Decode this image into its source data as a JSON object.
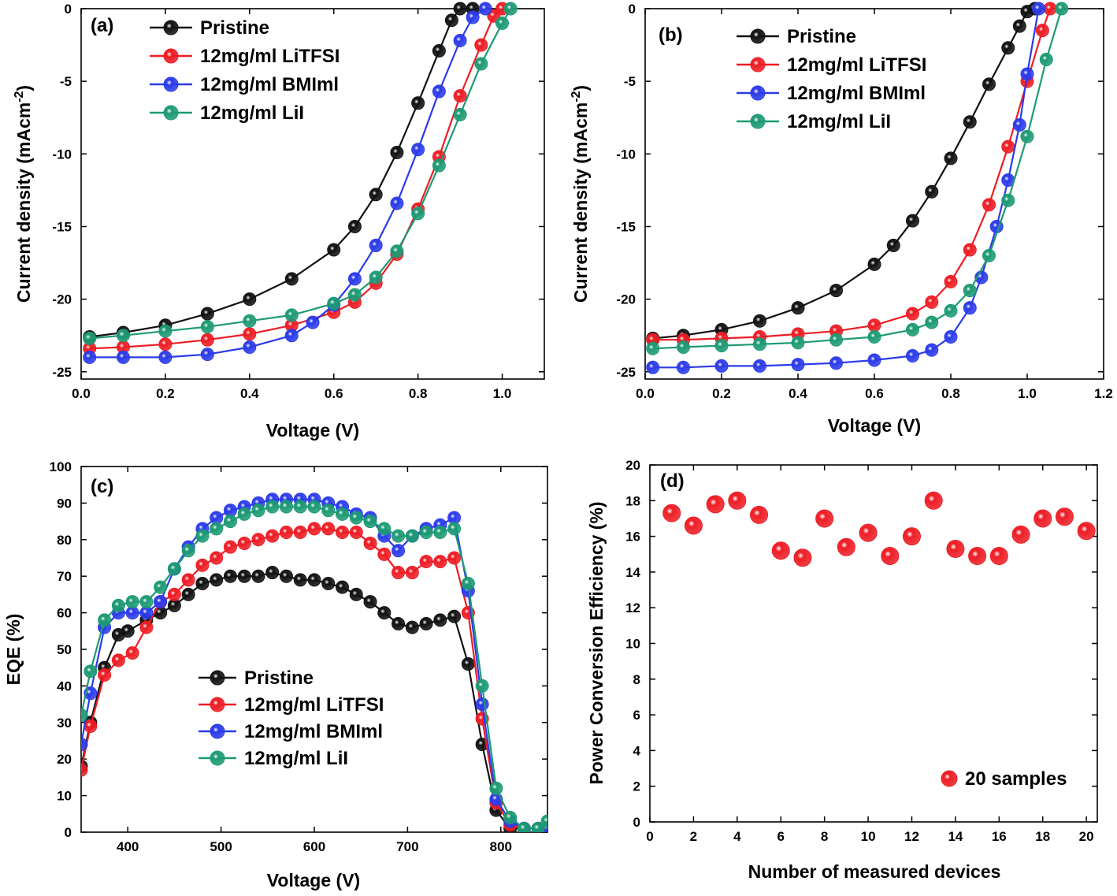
{
  "palette": {
    "Pristine": "#111111",
    "12mg/ml LiTFSI": "#ee1c24",
    "12mg/ml BMIml": "#2b3bea",
    "12mg/ml LiI": "#1d9a74"
  },
  "chart_data": [
    {
      "type": "line",
      "panel": "(a)",
      "xlabel": "Voltage (V)",
      "ylabel": "Current density (mAcm-2)",
      "xlim": [
        0,
        1.1
      ],
      "ylim": [
        -25.5,
        0
      ],
      "xticks": [
        "0.0",
        "0.2",
        "0.4",
        "0.6",
        "0.8",
        "1.0"
      ],
      "yticks": [
        "0",
        "-5",
        "-10",
        "-15",
        "-20",
        "-25"
      ],
      "legend_position": "top-left",
      "series": [
        {
          "name": "Pristine",
          "color": "Pristine",
          "x": [
            0.02,
            0.1,
            0.2,
            0.3,
            0.4,
            0.5,
            0.6,
            0.65,
            0.7,
            0.75,
            0.8,
            0.85,
            0.88,
            0.9,
            0.93
          ],
          "y": [
            -22.6,
            -22.3,
            -21.8,
            -21,
            -20,
            -18.6,
            -16.6,
            -15,
            -12.8,
            -9.9,
            -6.5,
            -2.9,
            -0.8,
            0,
            0
          ]
        },
        {
          "name": "12mg/ml LiTFSI",
          "color": "12mg/ml LiTFSI",
          "x": [
            0.02,
            0.1,
            0.2,
            0.3,
            0.4,
            0.5,
            0.6,
            0.65,
            0.7,
            0.75,
            0.8,
            0.85,
            0.9,
            0.95,
            0.98,
            1.0
          ],
          "y": [
            -23.4,
            -23.3,
            -23.1,
            -22.8,
            -22.4,
            -21.8,
            -20.9,
            -20.2,
            -18.9,
            -16.9,
            -13.8,
            -10.2,
            -6,
            -2.5,
            -0.5,
            0
          ]
        },
        {
          "name": "12mg/ml BMIml",
          "color": "12mg/ml BMIml",
          "x": [
            0.02,
            0.1,
            0.2,
            0.3,
            0.4,
            0.5,
            0.55,
            0.6,
            0.65,
            0.7,
            0.75,
            0.8,
            0.85,
            0.9,
            0.93,
            0.96
          ],
          "y": [
            -24,
            -24,
            -24,
            -23.8,
            -23.3,
            -22.5,
            -21.6,
            -20.4,
            -18.6,
            -16.3,
            -13.4,
            -9.7,
            -5.7,
            -2.2,
            -0.6,
            0
          ]
        },
        {
          "name": "12mg/ml LiI",
          "color": "12mg/ml LiI",
          "x": [
            0.02,
            0.1,
            0.2,
            0.3,
            0.4,
            0.5,
            0.6,
            0.65,
            0.7,
            0.75,
            0.8,
            0.85,
            0.9,
            0.95,
            1.0,
            1.02
          ],
          "y": [
            -22.7,
            -22.5,
            -22.2,
            -21.9,
            -21.5,
            -21.1,
            -20.3,
            -19.7,
            -18.5,
            -16.7,
            -14.1,
            -10.8,
            -7.3,
            -3.8,
            -1,
            0
          ]
        }
      ]
    },
    {
      "type": "line",
      "panel": "(b)",
      "xlabel": "Voltage (V)",
      "ylabel": "Current density (mAcm-2)",
      "xlim": [
        0,
        1.2
      ],
      "ylim": [
        -25.5,
        0
      ],
      "xticks": [
        "0.0",
        "0.2",
        "0.4",
        "0.6",
        "0.8",
        "1.0",
        "1.2"
      ],
      "yticks": [
        "0",
        "-5",
        "-10",
        "-15",
        "-20",
        "-25"
      ],
      "legend_position": "top-left",
      "series": [
        {
          "name": "Pristine",
          "color": "Pristine",
          "x": [
            0.02,
            0.1,
            0.2,
            0.3,
            0.4,
            0.5,
            0.6,
            0.65,
            0.7,
            0.75,
            0.8,
            0.85,
            0.9,
            0.95,
            0.98,
            1.0,
            1.02
          ],
          "y": [
            -22.7,
            -22.5,
            -22.1,
            -21.5,
            -20.6,
            -19.4,
            -17.6,
            -16.3,
            -14.6,
            -12.6,
            -10.3,
            -7.8,
            -5.2,
            -2.7,
            -1.2,
            -0.2,
            0
          ]
        },
        {
          "name": "12mg/ml LiTFSI",
          "color": "12mg/ml LiTFSI",
          "x": [
            0.02,
            0.1,
            0.2,
            0.3,
            0.4,
            0.5,
            0.6,
            0.7,
            0.75,
            0.8,
            0.85,
            0.9,
            0.95,
            1.0,
            1.04,
            1.06
          ],
          "y": [
            -22.8,
            -22.8,
            -22.7,
            -22.6,
            -22.4,
            -22.2,
            -21.8,
            -21,
            -20.2,
            -18.8,
            -16.6,
            -13.5,
            -9.5,
            -5,
            -1.5,
            0
          ]
        },
        {
          "name": "12mg/ml BMIml",
          "color": "12mg/ml BMIml",
          "x": [
            0.02,
            0.1,
            0.2,
            0.3,
            0.4,
            0.5,
            0.6,
            0.7,
            0.75,
            0.8,
            0.85,
            0.88,
            0.92,
            0.95,
            0.98,
            1.0,
            1.03
          ],
          "y": [
            -24.7,
            -24.7,
            -24.6,
            -24.6,
            -24.5,
            -24.4,
            -24.2,
            -23.9,
            -23.5,
            -22.6,
            -20.6,
            -18.5,
            -15,
            -11.8,
            -8,
            -4.5,
            0
          ]
        },
        {
          "name": "12mg/ml LiI",
          "color": "12mg/ml LiI",
          "x": [
            0.02,
            0.1,
            0.2,
            0.3,
            0.4,
            0.5,
            0.6,
            0.7,
            0.75,
            0.8,
            0.85,
            0.9,
            0.95,
            1.0,
            1.05,
            1.09
          ],
          "y": [
            -23.4,
            -23.3,
            -23.2,
            -23.1,
            -23,
            -22.8,
            -22.6,
            -22.1,
            -21.6,
            -20.8,
            -19.4,
            -17,
            -13.2,
            -8.8,
            -3.5,
            0
          ]
        }
      ]
    },
    {
      "type": "line",
      "panel": "(c)",
      "xlabel": "Voltage (V)",
      "ylabel": "EQE (%)",
      "xlim": [
        350,
        850
      ],
      "ylim": [
        0,
        100
      ],
      "xticks": [
        "400",
        "500",
        "600",
        "700",
        "800"
      ],
      "yticks": [
        "0",
        "10",
        "20",
        "30",
        "40",
        "50",
        "60",
        "70",
        "80",
        "90",
        "100"
      ],
      "legend_position": "lower-left",
      "series": [
        {
          "name": "Pristine",
          "color": "Pristine",
          "x": [
            350,
            360,
            375,
            390,
            400,
            420,
            435,
            450,
            465,
            480,
            495,
            510,
            525,
            540,
            555,
            570,
            585,
            600,
            615,
            630,
            645,
            660,
            675,
            690,
            705,
            720,
            735,
            750,
            765,
            780,
            795,
            810,
            825,
            840,
            850
          ],
          "y": [
            18,
            30,
            45,
            54,
            55,
            58,
            60,
            62,
            65,
            68,
            69,
            70,
            70,
            70,
            71,
            70,
            69,
            69,
            68,
            67,
            65,
            63,
            60,
            57,
            56,
            57,
            58,
            59,
            46,
            24,
            6,
            1,
            1,
            1,
            1
          ]
        },
        {
          "name": "12mg/ml LiTFSI",
          "color": "12mg/ml LiTFSI",
          "x": [
            350,
            360,
            375,
            390,
            405,
            420,
            435,
            450,
            465,
            480,
            495,
            510,
            525,
            540,
            555,
            570,
            585,
            600,
            615,
            630,
            645,
            660,
            675,
            690,
            705,
            720,
            735,
            750,
            765,
            780,
            795,
            810,
            825,
            840,
            850
          ],
          "y": [
            17,
            29,
            43,
            47,
            49,
            56,
            63,
            65,
            69,
            73,
            75,
            78,
            79,
            80,
            81,
            82,
            82,
            83,
            83,
            82,
            82,
            79,
            76,
            71,
            71,
            74,
            74,
            75,
            60,
            31,
            8,
            2,
            1,
            1,
            1
          ]
        },
        {
          "name": "12mg/ml BMIml",
          "color": "12mg/ml BMIml",
          "x": [
            350,
            360,
            375,
            390,
            405,
            420,
            435,
            450,
            465,
            480,
            495,
            510,
            525,
            540,
            555,
            570,
            585,
            600,
            615,
            630,
            645,
            660,
            675,
            690,
            705,
            720,
            735,
            750,
            765,
            780,
            795,
            810,
            825,
            840,
            850
          ],
          "y": [
            24,
            38,
            56,
            60,
            60,
            60,
            63,
            72,
            78,
            83,
            86,
            88,
            89,
            90,
            91,
            91,
            91,
            91,
            90,
            89,
            87,
            86,
            81,
            77,
            81,
            83,
            84,
            86,
            66,
            35,
            9,
            3,
            1,
            1,
            1
          ]
        },
        {
          "name": "12mg/ml LiI",
          "color": "12mg/ml LiI",
          "x": [
            350,
            360,
            375,
            390,
            405,
            420,
            435,
            450,
            465,
            480,
            495,
            510,
            525,
            540,
            555,
            570,
            585,
            600,
            615,
            630,
            645,
            660,
            675,
            690,
            705,
            720,
            735,
            750,
            765,
            780,
            795,
            810,
            825,
            840,
            850
          ],
          "y": [
            32,
            44,
            58,
            62,
            63,
            63,
            67,
            72,
            77,
            81,
            83,
            85,
            87,
            88,
            89,
            89,
            89,
            89,
            88,
            87,
            86,
            85,
            83,
            81,
            81,
            82,
            82,
            83,
            68,
            40,
            12,
            4,
            1,
            1,
            3
          ]
        }
      ]
    },
    {
      "type": "scatter",
      "panel": "(d)",
      "xlabel": "Number of measured devices",
      "ylabel": "Power Conversion Efficiency (%)",
      "xlim": [
        0,
        20.5
      ],
      "ylim": [
        0,
        20
      ],
      "xticks": [
        "0",
        "2",
        "4",
        "6",
        "8",
        "10",
        "12",
        "14",
        "16",
        "18",
        "20"
      ],
      "yticks": [
        "0",
        "2",
        "4",
        "6",
        "8",
        "10",
        "12",
        "14",
        "16",
        "18",
        "20"
      ],
      "legend_position": "lower-right",
      "series": [
        {
          "name": "20 samples",
          "color": "12mg/ml LiTFSI",
          "x": [
            1,
            2,
            3,
            4,
            5,
            6,
            7,
            8,
            9,
            10,
            11,
            12,
            13,
            14,
            15,
            16,
            17,
            18,
            19,
            20
          ],
          "y": [
            17.3,
            16.6,
            17.8,
            18.0,
            17.2,
            15.2,
            14.8,
            17.0,
            15.4,
            16.2,
            14.9,
            16.0,
            18.0,
            15.3,
            14.9,
            14.9,
            16.1,
            17.0,
            17.1,
            16.3
          ]
        }
      ]
    }
  ]
}
